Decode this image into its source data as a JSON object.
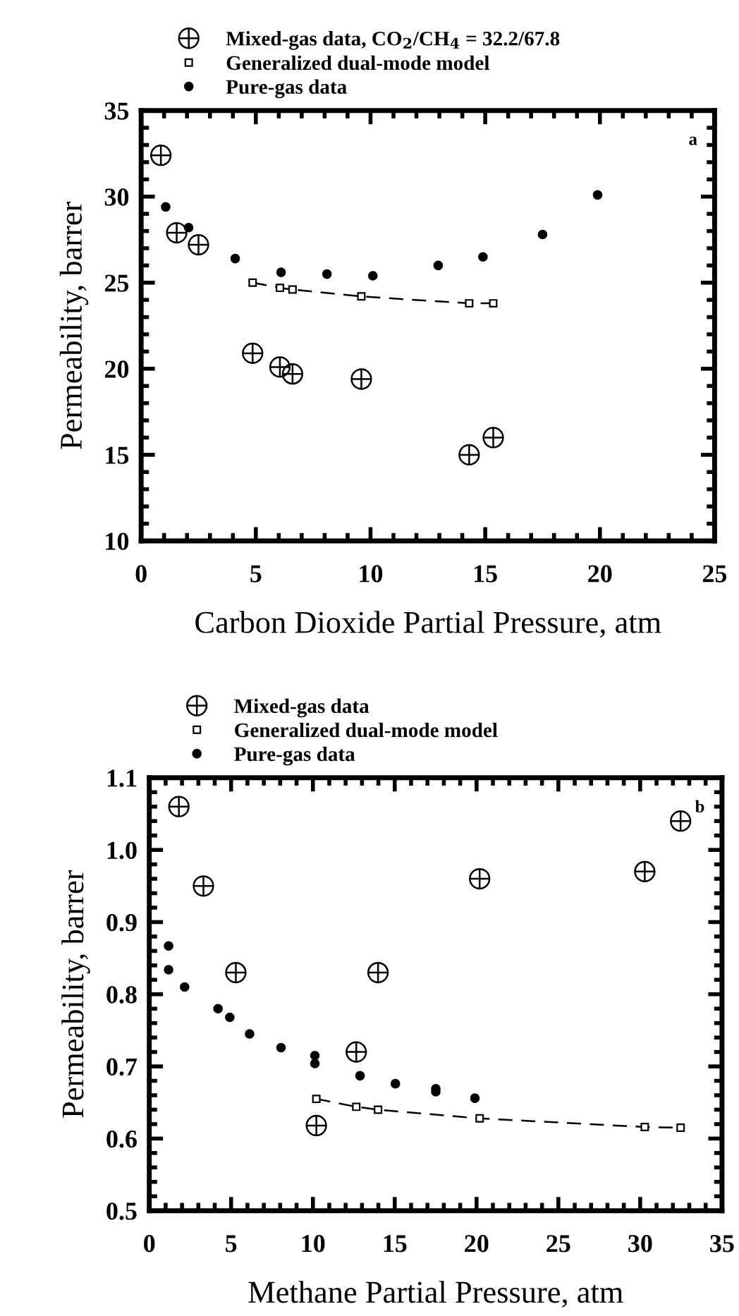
{
  "chart_data": [
    {
      "type": "scatter",
      "xlabel": "Carbon Dioxide Partial Pressure, atm",
      "ylabel": "Permeability, barrer",
      "xlim": [
        0,
        25
      ],
      "xticks": [
        0,
        5,
        10,
        15,
        20,
        25
      ],
      "ylim": [
        10,
        35
      ],
      "yticks": [
        10,
        15,
        20,
        25,
        30,
        35
      ],
      "legend": "top",
      "grid": false,
      "annotations": [
        "a"
      ],
      "series": [
        {
          "name": "Mixed-gas data, CO$_{2}$/CH$_{4}$ = 32.2/67.8",
          "marker": "cross",
          "color": "#000000",
          "x": [
            0.86,
            1.55,
            2.5,
            4.86,
            6.05,
            6.6,
            9.6,
            14.3,
            15.35
          ],
          "values": [
            32.4,
            27.9,
            27.2,
            20.9,
            20.1,
            19.7,
            19.4,
            15.0,
            16.0
          ]
        },
        {
          "name": "Generalized dual-mode model",
          "type": "line",
          "marker": "square",
          "line_style": "dashed",
          "color": "#000000",
          "x": [
            4.86,
            6.05,
            6.6,
            9.6,
            14.3,
            15.35
          ],
          "values": [
            25.0,
            24.7,
            24.6,
            24.2,
            23.8,
            23.8
          ]
        },
        {
          "name": "Pure-gas data",
          "marker": "circle",
          "color": "#000000",
          "x": [
            1.07,
            2.07,
            4.1,
            6.1,
            8.1,
            10.1,
            12.95,
            14.9,
            17.5,
            19.9
          ],
          "values": [
            29.4,
            28.2,
            26.4,
            25.6,
            25.5,
            25.4,
            26.0,
            26.5,
            27.8,
            30.1
          ]
        }
      ]
    },
    {
      "type": "scatter",
      "xlabel": "Methane Partial Pressure, atm",
      "ylabel": "Permeability, barrer",
      "xlim": [
        0,
        35
      ],
      "xticks": [
        0,
        5,
        10,
        15,
        20,
        25,
        30,
        35
      ],
      "ylim": [
        0.5,
        1.1
      ],
      "yticks": [
        {
          "value": 0.5,
          "label": "0.5"
        },
        {
          "value": 0.6,
          "label": "0.6"
        },
        {
          "value": 0.7,
          "label": "0.7"
        },
        {
          "value": 0.8,
          "label": "0.8"
        },
        {
          "value": 0.9,
          "label": "0.9"
        },
        {
          "value": 1.0,
          "label": "1.0"
        },
        {
          "value": 1.1,
          "label": "1.1"
        }
      ],
      "legend": "top",
      "grid": false,
      "annotations": [
        "b"
      ],
      "series": [
        {
          "name": "Mixed-gas data",
          "marker": "cross",
          "color": "#000000",
          "x": [
            1.81,
            3.31,
            5.29,
            10.21,
            12.65,
            13.98,
            20.19,
            30.28,
            32.47
          ],
          "values": [
            1.06,
            0.95,
            0.83,
            0.618,
            0.72,
            0.83,
            0.96,
            0.97,
            1.04
          ]
        },
        {
          "name": "Generalized dual-mode model",
          "type": "line",
          "marker": "square",
          "line_style": "dashed",
          "color": "#000000",
          "x": [
            10.21,
            12.65,
            13.98,
            20.19,
            30.28,
            32.47
          ],
          "values": [
            0.655,
            0.644,
            0.64,
            0.628,
            0.616,
            0.615
          ]
        },
        {
          "name": "Pure-gas data",
          "marker": "circle",
          "color": "#000000",
          "x": [
            1.18,
            1.18,
            2.16,
            4.2,
            4.92,
            6.13,
            8.05,
            10.12,
            10.12,
            12.88,
            15.04,
            17.51,
            17.51,
            19.9
          ],
          "values": [
            0.867,
            0.834,
            0.81,
            0.78,
            0.768,
            0.745,
            0.726,
            0.715,
            0.704,
            0.687,
            0.676,
            0.669,
            0.665,
            0.656
          ]
        }
      ]
    }
  ]
}
